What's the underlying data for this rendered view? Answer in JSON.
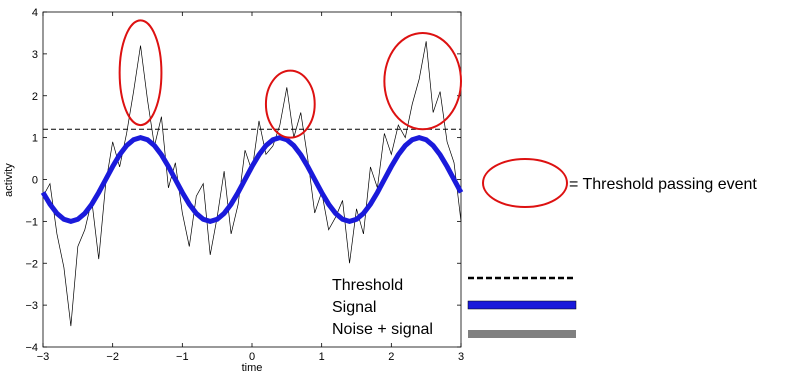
{
  "chart_data": {
    "type": "line",
    "xlabel": "time",
    "ylabel": "activity",
    "xlim": [
      -3,
      3
    ],
    "ylim": [
      -4,
      4
    ],
    "xticks": [
      -3,
      -2,
      -1,
      0,
      1,
      2,
      3
    ],
    "yticks": [
      -4,
      -3,
      -2,
      -1,
      0,
      1,
      2,
      3,
      4
    ],
    "xtick_labels": [
      "−3",
      "−2",
      "−1",
      "0",
      "1",
      "2",
      "3"
    ],
    "ytick_labels": [
      "−4",
      "−3",
      "−2",
      "−1",
      "0",
      "1",
      "2",
      "3",
      "4"
    ],
    "grid": false,
    "threshold": {
      "name": "Threshold",
      "value": 1.2,
      "color": "#000000",
      "style": "dashed"
    },
    "signal": {
      "name": "Signal",
      "color": "#1a1adb",
      "x": [
        -3.0,
        -2.9,
        -2.8,
        -2.7,
        -2.6,
        -2.5,
        -2.4,
        -2.3,
        -2.2,
        -2.1,
        -2.0,
        -1.9,
        -1.8,
        -1.7,
        -1.6,
        -1.5,
        -1.4,
        -1.3,
        -1.2,
        -1.1,
        -1.0,
        -0.9,
        -0.8,
        -0.7,
        -0.6,
        -0.5,
        -0.4,
        -0.3,
        -0.2,
        -0.1,
        0.0,
        0.1,
        0.2,
        0.3,
        0.4,
        0.5,
        0.6,
        0.7,
        0.8,
        0.9,
        1.0,
        1.1,
        1.2,
        1.3,
        1.4,
        1.5,
        1.6,
        1.7,
        1.8,
        1.9,
        2.0,
        2.1,
        2.2,
        2.3,
        2.4,
        2.5,
        2.6,
        2.7,
        2.8,
        2.9,
        3.0
      ],
      "y": [
        -0.31,
        -0.59,
        -0.81,
        -0.95,
        -1.0,
        -0.95,
        -0.81,
        -0.59,
        -0.31,
        0.0,
        0.31,
        0.59,
        0.81,
        0.95,
        1.0,
        0.95,
        0.81,
        0.59,
        0.31,
        0.0,
        -0.31,
        -0.59,
        -0.81,
        -0.95,
        -1.0,
        -0.95,
        -0.81,
        -0.59,
        -0.31,
        0.0,
        0.31,
        0.59,
        0.81,
        0.95,
        1.0,
        0.95,
        0.81,
        0.59,
        0.31,
        0.0,
        -0.31,
        -0.59,
        -0.81,
        -0.95,
        -1.0,
        -0.95,
        -0.81,
        -0.59,
        -0.31,
        0.0,
        0.31,
        0.59,
        0.81,
        0.95,
        1.0,
        0.95,
        0.81,
        0.59,
        0.31,
        0.0,
        -0.31
      ]
    },
    "noise_signal": {
      "name": "Noise + signal",
      "color": "#808080",
      "line_color": "#000000",
      "x": [
        -3.0,
        -2.9,
        -2.8,
        -2.7,
        -2.6,
        -2.5,
        -2.4,
        -2.3,
        -2.2,
        -2.1,
        -2.0,
        -1.9,
        -1.8,
        -1.7,
        -1.6,
        -1.5,
        -1.4,
        -1.3,
        -1.2,
        -1.1,
        -1.0,
        -0.9,
        -0.8,
        -0.7,
        -0.6,
        -0.5,
        -0.4,
        -0.3,
        -0.2,
        -0.1,
        0.0,
        0.1,
        0.2,
        0.3,
        0.4,
        0.5,
        0.6,
        0.7,
        0.8,
        0.9,
        1.0,
        1.1,
        1.2,
        1.3,
        1.4,
        1.5,
        1.6,
        1.7,
        1.8,
        1.9,
        2.0,
        2.1,
        2.2,
        2.3,
        2.4,
        2.5,
        2.6,
        2.7,
        2.8,
        2.9,
        3.0
      ],
      "y": [
        -0.4,
        -0.1,
        -1.3,
        -2.1,
        -3.5,
        -1.6,
        -1.2,
        -0.5,
        -1.9,
        -0.1,
        0.9,
        0.3,
        1.1,
        2.1,
        3.2,
        1.9,
        0.8,
        1.5,
        -0.2,
        0.4,
        -0.8,
        -1.6,
        -0.4,
        -0.1,
        -1.8,
        -0.9,
        0.2,
        -1.3,
        -0.6,
        0.7,
        0.2,
        1.4,
        0.6,
        0.8,
        1.3,
        2.2,
        1.0,
        1.6,
        0.5,
        -0.8,
        -0.3,
        -1.2,
        -0.9,
        -0.5,
        -2.0,
        -0.7,
        -1.3,
        0.3,
        -0.2,
        1.1,
        0.6,
        1.3,
        1.0,
        1.8,
        2.4,
        3.3,
        1.6,
        2.1,
        0.9,
        0.4,
        -1.0
      ]
    },
    "events": [
      {
        "cx": -1.6,
        "cy": 2.55,
        "rx": 0.3,
        "ry": 1.25
      },
      {
        "cx": 0.55,
        "cy": 1.8,
        "rx": 0.35,
        "ry": 0.8
      },
      {
        "cx": 2.45,
        "cy": 2.35,
        "rx": 0.55,
        "ry": 1.15
      }
    ],
    "event_color": "#dd1111",
    "legend": {
      "placement": "bottom-right",
      "entries": [
        "Threshold",
        "Signal",
        "Noise + signal"
      ]
    },
    "callout": {
      "label": "= Threshold passing event"
    }
  }
}
